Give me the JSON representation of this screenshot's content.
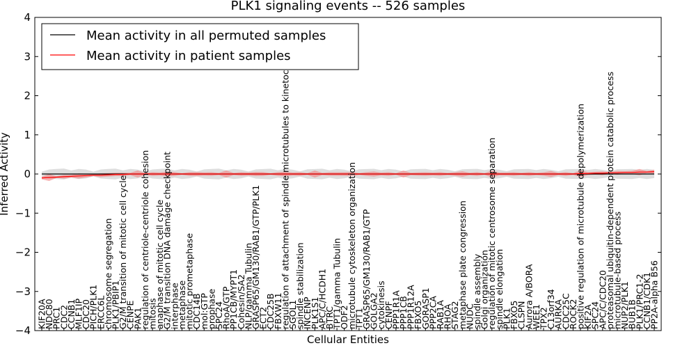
{
  "chart_data": {
    "type": "line",
    "title": "PLK1 signaling events -- 526 samples",
    "xlabel": "Cellular Entities",
    "ylabel": "Inferred Activity",
    "ylim": [
      -4,
      4
    ],
    "yticks": [
      -4,
      -3,
      -2,
      -1,
      0,
      1,
      2,
      3,
      4
    ],
    "grid": false,
    "legend_position": "top-left",
    "categories": [
      "KIF20A",
      "NDC80",
      "PRC1",
      "CDC2",
      "CCNB1",
      "MLF1IP",
      "CDC20",
      "PICH/PLK1",
      "ERCC6L",
      "chromosome segregation",
      "PLK1/PBIP1",
      "G2/M transition of mitotic cell cycle",
      "CENPE",
      "PAK1",
      "regulation of centriole-centriole cohesion",
      "mitosis",
      "anaphase of mitotic cell cycle",
      "G2/M transition DNA damage checkpoint",
      "interphase",
      "metaphase",
      "mitotic prometaphase",
      "CDC14B",
      "mol:GTP",
      "prophase",
      "SPC24",
      "RhoA/GTP",
      "PP1CB/MYPT1",
      "Cohesin/SA2",
      "NLP/gamma Tubulin",
      "GRASP65/GM130/RAB1/GTP/PLK1",
      "ECT2",
      "CDC25B",
      "FBXW11",
      "regulation of attachment of spindle microtubules to kinetochore",
      "SGOL1",
      "spindle stabilization",
      "INCENP",
      "PLK1S1",
      "APC/C/HCDH1",
      "BTRC",
      "TPT1/gamma Tubulin",
      "ODF2",
      "microtubule cytoskeleton organization",
      "TPT1",
      "GRASP65/GM130/RAB1/GTP",
      "GOLGA2",
      "cytokinesis",
      "CENPF",
      "PPP1R1A",
      "PPP1CB",
      "PPP1R12A",
      "FBXO5",
      "GORASP1",
      "PPP2CA",
      "RAB1A",
      "RHOA",
      "STAG2",
      "metaphase plate congression",
      "NUDC",
      "spindle assembly",
      "Golgi organization",
      "regulation of mitotic centrosome separation",
      "spindle elongation",
      "PLK1",
      "FBXO5",
      "CLSPN",
      "Aurora A/BORA",
      "WEE1",
      "TPX2",
      "C13orf34",
      "AURKA",
      "CDC25C",
      "ROCK2",
      "positive regulation of microtubule depolymerization",
      "KIF2A",
      "SPC24",
      "APC/C/CDC20",
      "proteasomal ubiquitin-dependent protein catabolic process",
      "microtubule-based process",
      "NUP2/PLK1",
      "BUB1B",
      "PLK1/PRC1-2",
      "CCNB1/CDK1",
      "PP2A-alpha B56"
    ],
    "series": [
      {
        "name": "Mean activity in all permuted samples",
        "color": "#000000",
        "values": [
          0.0,
          0.0,
          0.0,
          0.0,
          0.0,
          0.0,
          0.0,
          0.0,
          0.0,
          0.0,
          0.0,
          0.0,
          0.0,
          0.0,
          0.0,
          0.0,
          0.0,
          0.0,
          0.0,
          0.0,
          0.0,
          0.0,
          0.0,
          0.0,
          0.0,
          0.0,
          0.0,
          0.0,
          0.0,
          0.0,
          0.0,
          0.0,
          0.0,
          0.0,
          0.0,
          0.0,
          0.0,
          0.0,
          0.0,
          0.0,
          0.0,
          0.0,
          0.0,
          0.0,
          0.0,
          0.0,
          0.0,
          0.0,
          0.0,
          0.0,
          0.0,
          0.0,
          0.0,
          0.0,
          0.0,
          0.0,
          0.0,
          0.0,
          0.0,
          0.0,
          0.0,
          0.0,
          0.0,
          0.0,
          0.0,
          0.0,
          0.0,
          0.0,
          0.0,
          0.0,
          0.0,
          0.0,
          0.0,
          0.0,
          0.0,
          0.0,
          0.0,
          0.0,
          0.0,
          0.0,
          0.0,
          0.0,
          0.0,
          0.0
        ]
      },
      {
        "name": "Mean activity in patient samples",
        "color": "#ff0000",
        "values": [
          -0.1,
          -0.09,
          -0.08,
          -0.07,
          -0.06,
          -0.05,
          -0.04,
          -0.03,
          -0.03,
          -0.02,
          -0.01,
          -0.01,
          0.0,
          0.0,
          0.0,
          0.0,
          0.0,
          0.0,
          0.0,
          0.0,
          0.0,
          0.0,
          0.0,
          0.0,
          0.0,
          0.0,
          0.0,
          0.0,
          0.0,
          0.0,
          0.0,
          0.0,
          0.0,
          0.0,
          0.0,
          0.0,
          0.0,
          0.0,
          0.0,
          0.0,
          0.0,
          0.0,
          0.0,
          0.0,
          0.0,
          0.0,
          0.0,
          0.0,
          0.0,
          0.0,
          0.0,
          0.0,
          0.0,
          0.0,
          0.0,
          0.0,
          0.0,
          0.0,
          0.0,
          0.0,
          0.0,
          0.0,
          0.0,
          0.0,
          0.0,
          0.0,
          0.0,
          0.0,
          0.0,
          0.0,
          0.0,
          0.0,
          0.0,
          0.01,
          0.01,
          0.02,
          0.02,
          0.03,
          0.03,
          0.04,
          0.04,
          0.05,
          0.05,
          0.06
        ]
      }
    ]
  }
}
